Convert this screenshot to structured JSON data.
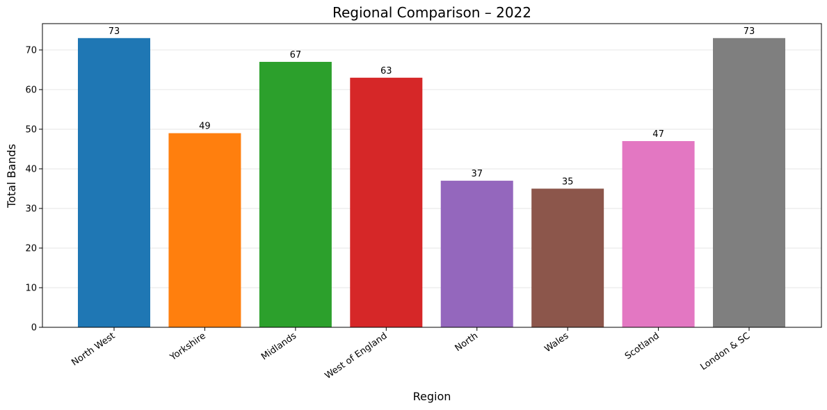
{
  "chart_data": {
    "type": "bar",
    "title": "Regional Comparison – 2022",
    "x_label": "Region",
    "y_label": "Total Bands",
    "categories": [
      "North West",
      "Yorkshire",
      "Midlands",
      "West of England",
      "North",
      "Wales",
      "Scotland",
      "London & SC"
    ],
    "values": [
      73,
      49,
      67,
      63,
      37,
      35,
      47,
      73
    ],
    "colors": [
      "#1f77b4",
      "#ff7f0e",
      "#2ca02c",
      "#d62728",
      "#9467bd",
      "#8c564b",
      "#e377c2",
      "#7f7f7f"
    ],
    "ylim": [
      0,
      76.65
    ],
    "yticks": [
      0,
      10,
      20,
      30,
      40,
      50,
      60,
      70
    ],
    "grid": true
  }
}
